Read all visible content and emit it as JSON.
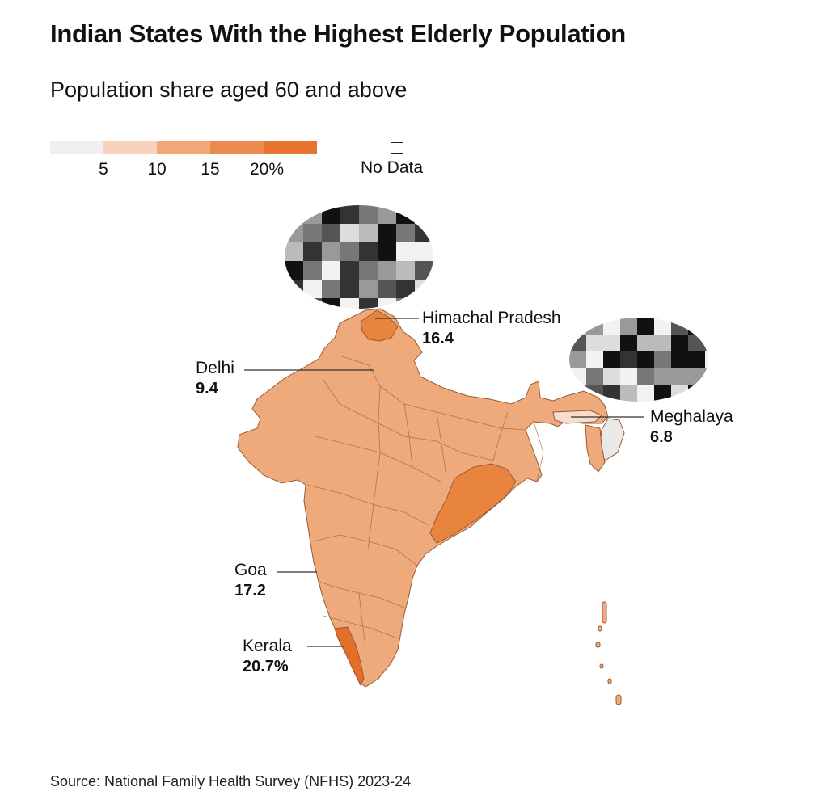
{
  "header": {
    "title": "Indian States With the Highest Elderly Population",
    "subtitle": "Population share aged 60 and above"
  },
  "legend": {
    "colors": [
      "#efefef",
      "#f7d2bd",
      "#f0a878",
      "#ec8a4f",
      "#e8732f"
    ],
    "ticks": [
      "5",
      "10",
      "15",
      "20%"
    ],
    "no_data_label": "No Data"
  },
  "colors": {
    "default_state": "#eeaa7b",
    "high_state": "#e9843f",
    "highest_state": "#e46d28",
    "low_state": "#f8dccb",
    "no_data": "#e9e9e9",
    "border": "#9a5a35"
  },
  "callouts": [
    {
      "name": "Himachal Pradesh",
      "value": "16.4"
    },
    {
      "name": "Delhi",
      "value": "9.4"
    },
    {
      "name": "Meghalaya",
      "value": "6.8"
    },
    {
      "name": "Goa",
      "value": "17.2"
    },
    {
      "name": "Kerala",
      "value": "20.7%"
    }
  ],
  "source": "Source: National Family Health Survey (NFHS) 2023-24"
}
